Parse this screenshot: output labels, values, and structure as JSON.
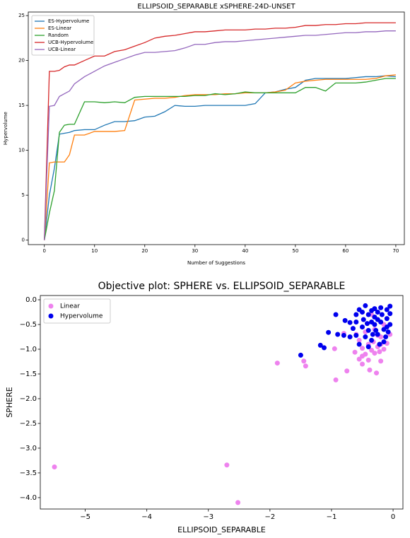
{
  "chart_data": [
    {
      "type": "line",
      "title": "ELLIPSOID_SEPARABLE xSPHERE-24D-UNSET",
      "xlabel": "Number of Suggestions",
      "ylabel": "Hypervolume",
      "x": [
        0,
        1,
        2,
        3,
        4,
        5,
        6,
        8,
        10,
        12,
        14,
        16,
        18,
        20,
        22,
        24,
        26,
        28,
        30,
        32,
        34,
        36,
        38,
        40,
        42,
        44,
        46,
        48,
        50,
        52,
        54,
        56,
        58,
        60,
        62,
        64,
        66,
        68,
        70
      ],
      "series": [
        {
          "name": "ES-Hypervolume",
          "color": "#1f77b4",
          "values": [
            0,
            5,
            8,
            11.8,
            11.9,
            12.0,
            12.2,
            12.3,
            12.3,
            12.8,
            13.2,
            13.2,
            13.3,
            13.7,
            13.8,
            14.3,
            15.0,
            14.9,
            14.9,
            15.0,
            15.0,
            15.0,
            15.0,
            15.0,
            15.2,
            16.4,
            16.5,
            16.8,
            17.0,
            17.8,
            18.0,
            18.0,
            18.0,
            18.0,
            18.1,
            18.2,
            18.2,
            18.3,
            18.2
          ]
        },
        {
          "name": "ES-Linear",
          "color": "#ff7f0e",
          "values": [
            0,
            8.6,
            8.7,
            8.7,
            8.7,
            9.5,
            11.7,
            11.7,
            12.1,
            12.1,
            12.1,
            12.2,
            15.6,
            15.7,
            15.8,
            15.8,
            15.9,
            16.1,
            16.2,
            16.2,
            16.2,
            16.3,
            16.3,
            16.4,
            16.4,
            16.4,
            16.5,
            16.7,
            17.5,
            17.7,
            17.8,
            17.9,
            17.9,
            17.9,
            17.9,
            17.9,
            18.0,
            18.3,
            18.4
          ]
        },
        {
          "name": "Random",
          "color": "#2ca02c",
          "values": [
            0,
            3,
            5.5,
            12.0,
            12.8,
            12.9,
            12.9,
            15.4,
            15.4,
            15.3,
            15.4,
            15.3,
            15.9,
            16.0,
            16.0,
            16.0,
            16.0,
            16.0,
            16.1,
            16.1,
            16.3,
            16.2,
            16.3,
            16.5,
            16.4,
            16.4,
            16.4,
            16.4,
            16.4,
            17.0,
            17.0,
            16.6,
            17.5,
            17.5,
            17.5,
            17.6,
            17.8,
            18.0,
            18.0
          ]
        },
        {
          "name": "UCB-Hypervolume",
          "color": "#d62728",
          "values": [
            0,
            18.8,
            18.8,
            18.9,
            19.3,
            19.5,
            19.5,
            20.0,
            20.5,
            20.5,
            21.0,
            21.2,
            21.6,
            22.0,
            22.5,
            22.7,
            22.8,
            23.0,
            23.2,
            23.2,
            23.3,
            23.4,
            23.4,
            23.4,
            23.5,
            23.5,
            23.6,
            23.6,
            23.7,
            23.9,
            23.9,
            24.0,
            24.0,
            24.1,
            24.1,
            24.2,
            24.2,
            24.2,
            24.2
          ]
        },
        {
          "name": "UCB-Linear",
          "color": "#9467bd",
          "values": [
            0,
            14.9,
            15.0,
            16.0,
            16.3,
            16.6,
            17.4,
            18.2,
            18.8,
            19.4,
            19.8,
            20.2,
            20.6,
            20.9,
            20.9,
            21.0,
            21.1,
            21.4,
            21.8,
            21.8,
            22.0,
            22.1,
            22.1,
            22.2,
            22.3,
            22.4,
            22.5,
            22.6,
            22.7,
            22.8,
            22.8,
            22.9,
            23.0,
            23.1,
            23.1,
            23.2,
            23.2,
            23.3,
            23.3
          ]
        }
      ],
      "xlim": [
        -3.2,
        71.7
      ],
      "xticks": [
        0,
        10,
        20,
        30,
        40,
        50,
        60,
        70
      ],
      "ylim": [
        -0.5,
        25.4
      ],
      "yticks": [
        0,
        5,
        10,
        15,
        20,
        25
      ],
      "legend": "upper left"
    },
    {
      "type": "scatter",
      "title": "Objective plot: SPHERE vs. ELLIPSOID_SEPARABLE",
      "xlabel": "ELLIPSOID_SEPARABLE",
      "ylabel": "SPHERE",
      "series": [
        {
          "name": "Linear",
          "color": "#ee82ee",
          "x": [
            -5.5,
            -2.7,
            -2.52,
            -1.88,
            -1.45,
            -1.42,
            -0.93,
            -0.95,
            -0.75,
            -0.62,
            -0.5,
            -0.38,
            -0.27,
            -0.2,
            -0.8,
            -0.55,
            -0.5,
            -0.45,
            -0.4,
            -0.35,
            -0.3,
            -0.25,
            -0.2,
            -0.15,
            -0.45,
            -0.3,
            -0.2,
            -0.35,
            -0.15,
            -0.25,
            -0.55,
            -0.4,
            -0.6,
            -0.1,
            -0.5,
            -0.05,
            -0.32,
            -0.22
          ],
          "y": [
            -3.38,
            -3.34,
            -4.1,
            -1.28,
            -1.24,
            -1.34,
            -1.62,
            -0.99,
            -1.44,
            -1.06,
            -1.14,
            -1.42,
            -1.48,
            -1.24,
            -0.68,
            -0.82,
            -0.98,
            -1.1,
            -0.9,
            -1.02,
            -1.08,
            -0.95,
            -0.75,
            -1.0,
            -0.65,
            -0.6,
            -0.9,
            -0.3,
            -0.5,
            -0.72,
            -1.2,
            -1.22,
            -0.7,
            -0.88,
            -1.3,
            -0.7,
            -0.85,
            -1.05
          ]
        },
        {
          "name": "Hypervolume",
          "color": "#0000ee",
          "x": [
            -1.5,
            -1.18,
            -1.12,
            -0.93,
            -1.05,
            -0.8,
            -0.78,
            -0.7,
            -0.6,
            -0.55,
            -0.5,
            -0.45,
            -0.4,
            -0.35,
            -0.3,
            -0.25,
            -0.2,
            -0.1,
            -0.05,
            -0.65,
            -0.6,
            -0.5,
            -0.45,
            -0.4,
            -0.35,
            -0.3,
            -0.25,
            -0.2,
            -0.15,
            -0.1,
            -0.05,
            -0.55,
            -0.48,
            -0.42,
            -0.3,
            -0.22,
            -0.12,
            -0.08,
            -0.18,
            -0.7,
            -0.9,
            -0.35,
            -0.28,
            -0.15,
            -0.05,
            -0.4,
            -0.6,
            -0.25,
            -0.1,
            -0.33
          ],
          "y": [
            -1.12,
            -0.92,
            -0.97,
            -0.3,
            -0.66,
            -0.72,
            -0.42,
            -0.46,
            -0.3,
            -0.2,
            -0.25,
            -0.12,
            -0.3,
            -0.22,
            -0.18,
            -0.25,
            -0.16,
            -0.2,
            -0.13,
            -0.58,
            -0.72,
            -0.55,
            -0.75,
            -0.62,
            -0.82,
            -0.5,
            -0.7,
            -0.45,
            -0.6,
            -0.38,
            -0.5,
            -0.9,
            -0.4,
            -0.48,
            -0.35,
            -0.9,
            -0.75,
            -0.65,
            -0.3,
            -0.75,
            -0.7,
            -0.45,
            -0.62,
            -0.85,
            -0.28,
            -0.95,
            -0.45,
            -0.4,
            -0.55,
            -0.7
          ]
        }
      ],
      "xlim": [
        -5.73,
        0.16
      ],
      "xticks": [
        {
          "value": -5,
          "label": "−5"
        },
        {
          "value": -4,
          "label": "−4"
        },
        {
          "value": -3,
          "label": "−3"
        },
        {
          "value": -2,
          "label": "−2"
        },
        {
          "value": -1,
          "label": "−1"
        },
        {
          "value": 0,
          "label": "0"
        }
      ],
      "ylim": [
        -4.23,
        0.086
      ],
      "yticks": [
        {
          "value": 0,
          "label": "0.0"
        },
        {
          "value": -0.5,
          "label": "−0.5"
        },
        {
          "value": -1,
          "label": "−1.0"
        },
        {
          "value": -1.5,
          "label": "−1.5"
        },
        {
          "value": -2,
          "label": "−2.0"
        },
        {
          "value": -2.5,
          "label": "−2.5"
        },
        {
          "value": -3,
          "label": "−3.0"
        },
        {
          "value": -3.5,
          "label": "−3.5"
        },
        {
          "value": -4,
          "label": "−4.0"
        }
      ],
      "legend": "upper left"
    }
  ]
}
